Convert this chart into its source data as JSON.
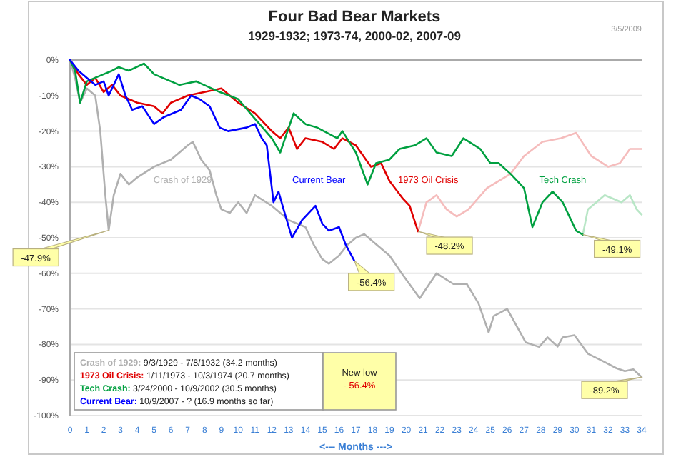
{
  "chart_data": {
    "type": "line",
    "title": "Four Bad Bear Markets",
    "subtitle": "1929-1932; 1973-74, 2000-02, 2007-09",
    "xlabel": "<--- Months --->",
    "xlim": [
      0,
      34
    ],
    "xticks": [
      0,
      1,
      2,
      3,
      4,
      5,
      6,
      7,
      8,
      9,
      10,
      11,
      12,
      13,
      14,
      15,
      16,
      17,
      18,
      19,
      20,
      21,
      22,
      23,
      24,
      25,
      26,
      27,
      28,
      29,
      30,
      31,
      32,
      33,
      34
    ],
    "ylim": [
      -100,
      0
    ],
    "yticks": [
      {
        "value": 0,
        "label": "0%"
      },
      {
        "value": -10,
        "label": "-10%"
      },
      {
        "value": -20,
        "label": "-20%"
      },
      {
        "value": -30,
        "label": "-30%"
      },
      {
        "value": -40,
        "label": "-40%"
      },
      {
        "value": -50,
        "label": "-50%"
      },
      {
        "value": -60,
        "label": "-60%"
      },
      {
        "value": -70,
        "label": "-70%"
      },
      {
        "value": -80,
        "label": "-80%"
      },
      {
        "value": -90,
        "label": "-90%"
      },
      {
        "value": -100,
        "label": "-100%"
      }
    ],
    "grid": "y",
    "marker": "none",
    "line_style": "solid",
    "series": [
      {
        "name": "Crash of 1929",
        "color": "#b0b0b0",
        "x": [
          0,
          0.3,
          0.6,
          1,
          1.5,
          1.8,
          2.1,
          2.3,
          2.6,
          3,
          3.5,
          4,
          5,
          6,
          7,
          7.3,
          7.8,
          8.3,
          8.7,
          9,
          9.5,
          10,
          10.5,
          11,
          12,
          13,
          14,
          14.5,
          15,
          15.4,
          16,
          16.5,
          17,
          17.5,
          18,
          19,
          19.8,
          20.8,
          21.8,
          22.8,
          23.6,
          24.3,
          24.9,
          25.2,
          26,
          27.1,
          27.9,
          28.4,
          29,
          29.3,
          30,
          30.8,
          31.7,
          32.5,
          33,
          33.5,
          34
        ],
        "values": [
          0,
          -5,
          -12,
          -8,
          -10,
          -20,
          -38,
          -47.9,
          -38,
          -32,
          -35,
          -33,
          -30,
          -28,
          -24,
          -23,
          -28,
          -31,
          -38,
          -42,
          -43,
          -40,
          -43,
          -38,
          -41,
          -45,
          -47,
          -52,
          -56,
          -57.3,
          -55,
          -52,
          -50,
          -49,
          -51,
          -55,
          -60.5,
          -67,
          -60,
          -63,
          -63,
          -68.5,
          -76.6,
          -72,
          -70,
          -79.4,
          -80.7,
          -78,
          -80.6,
          -78,
          -77.4,
          -82.6,
          -84.7,
          -86.7,
          -87.5,
          -87,
          -89.2
        ]
      },
      {
        "color": "#f5bcbc",
        "x": [
          20.7,
          21.2,
          21.8,
          22.4,
          23,
          23.7,
          24.8,
          25.5,
          26.2,
          27,
          28.1,
          29.2,
          30.1,
          31,
          32,
          32.7,
          33.3,
          34
        ],
        "values": [
          -48.2,
          -40,
          -38,
          -42,
          -44,
          -42,
          -36,
          -34,
          -32,
          -27,
          -23,
          -22,
          -20.5,
          -27,
          -30,
          -29,
          -25,
          -25
        ]
      },
      {
        "color": "#b8e6c6",
        "x": [
          30.5,
          30.8,
          31.3,
          31.8,
          32.3,
          32.8,
          33.3,
          33.7,
          34
        ],
        "values": [
          -49.1,
          -42,
          -40,
          -38,
          -39,
          -40,
          -38,
          -42,
          -43.5
        ]
      },
      {
        "name": "1973 Oil Crisis",
        "color": "#e00000",
        "x": [
          0,
          0.5,
          1,
          1.5,
          2,
          2.5,
          3,
          4,
          5,
          5.5,
          6,
          7,
          8,
          9,
          10,
          11,
          12,
          12.5,
          13,
          13.5,
          14,
          15,
          15.7,
          16.2,
          17,
          17.9,
          18.5,
          19,
          19.8,
          20.2,
          20.7
        ],
        "values": [
          0,
          -4,
          -7,
          -5,
          -9,
          -7,
          -10,
          -12,
          -13,
          -15,
          -12,
          -10,
          -9,
          -8,
          -12,
          -15,
          -20,
          -22,
          -19,
          -25,
          -22,
          -23,
          -25,
          -22,
          -24,
          -30,
          -29,
          -34,
          -39,
          -41,
          -48.2
        ]
      },
      {
        "name": "Tech Crash",
        "color": "#00a040",
        "x": [
          0,
          0.3,
          0.6,
          1,
          1.5,
          2,
          2.5,
          2.9,
          3.5,
          4.4,
          5,
          5.5,
          6.5,
          7.5,
          8.9,
          10,
          10.9,
          12,
          12.5,
          13.3,
          14,
          14.7,
          15.9,
          16.2,
          17,
          17.7,
          18.2,
          19,
          19.6,
          20.5,
          21.2,
          21.8,
          22.7,
          23.4,
          24.4,
          25,
          25.5,
          26.2,
          27,
          27.5,
          28.1,
          28.7,
          29.3,
          29.7,
          30.1,
          30.5
        ],
        "values": [
          0,
          -3,
          -12,
          -6,
          -5,
          -4,
          -3,
          -2,
          -3,
          -1,
          -4,
          -5,
          -7,
          -6,
          -9,
          -11,
          -16,
          -22,
          -26,
          -15,
          -18,
          -19,
          -22,
          -20,
          -26,
          -35,
          -29,
          -28,
          -25,
          -24,
          -22,
          -26,
          -27,
          -22,
          -25,
          -29,
          -29,
          -32,
          -36,
          -47,
          -40,
          -37,
          -40,
          -44,
          -48,
          -49.1
        ]
      },
      {
        "name": "Current Bear",
        "color": "#0000ff",
        "x": [
          0,
          0.5,
          1,
          1.5,
          2,
          2.3,
          2.9,
          3.3,
          3.7,
          4.3,
          5,
          5.6,
          6.6,
          7.2,
          7.7,
          8.3,
          8.9,
          9.4,
          10.5,
          11,
          11.4,
          11.7,
          12.1,
          12.4,
          12.7,
          13.2,
          13.8,
          14.6,
          15,
          15.4,
          16,
          16.4,
          16.9
        ],
        "values": [
          0,
          -3,
          -5,
          -7,
          -6,
          -10,
          -4,
          -10,
          -14,
          -13,
          -18,
          -16,
          -14,
          -10,
          -11,
          -13,
          -19,
          -20,
          -19,
          -18,
          -22,
          -24,
          -40,
          -37,
          -42,
          -50,
          -45,
          -41,
          -46,
          -48,
          -47,
          -52,
          -56.4
        ]
      }
    ],
    "annotations": [
      "3/5/2009",
      "Crash of 1929: 9/3/1929 - 7/8/1932 (34.2 months)",
      "1973 Oil Crisis: 1/11/1973 - 10/3/1974 (20.7 months)",
      "Tech Crash: 3/24/2000 - 10/9/2002 (30.5 months)",
      "Current Bear: 10/9/2007 - ? (16.9 months so far)",
      "New low",
      "- 56.4%",
      {
        "text": "-47.9%",
        "x": 2.3,
        "y": -47.9
      },
      {
        "text": "-48.2%",
        "x": 20.7,
        "y": -48.2
      },
      {
        "text": "-49.1%",
        "x": 30.5,
        "y": -49.1
      },
      {
        "text": "-56.4%",
        "x": 16.9,
        "y": -56.4
      },
      {
        "text": "-89.2%",
        "x": 34,
        "y": -89.2
      }
    ]
  }
}
